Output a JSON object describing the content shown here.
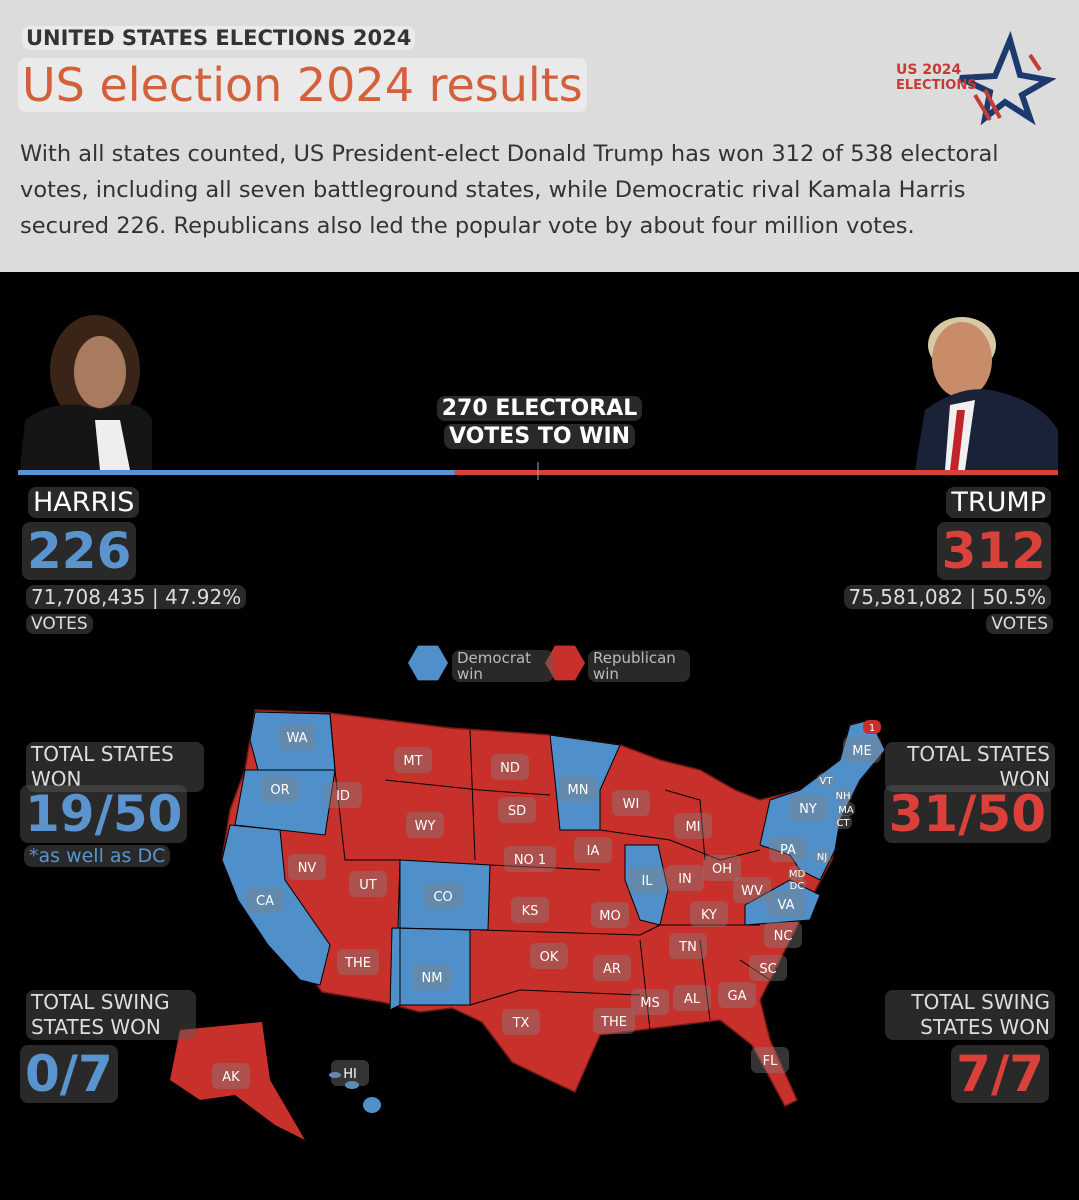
{
  "header": {
    "kicker": "UNITED STATES ELECTIONS 2024",
    "title": "US election 2024 results",
    "description": "With all states counted, US President-elect Donald Trump has won 312 of 538 electoral votes, including all seven battleground states, while Democratic rival Kamala Harris secured 226. Republicans also led the popular vote by about four million votes.",
    "logo": [
      "US 2024",
      "ELECTIONS"
    ]
  },
  "goal": [
    "270 ELECTORAL",
    "VOTES TO WIN"
  ],
  "harris": {
    "name": "HARRIS",
    "electoral_votes": 226,
    "color": "#5a94cf",
    "popular": "71,708,435 | 47.92%",
    "votes_label": "VOTES",
    "states_label": "TOTAL STATES WON",
    "states_won": "19/50",
    "states_note": "*as well as DC",
    "swing_label": "TOTAL SWING STATES WON",
    "swing_won": "0/7"
  },
  "trump": {
    "name": "TRUMP",
    "electoral_votes": 312,
    "color": "#d9413a",
    "popular": "75,581,082 | 50.5%",
    "votes_label": "VOTES",
    "states_label": "TOTAL STATES WON",
    "states_won": "31/50",
    "swing_label": "TOTAL SWING STATES WON",
    "swing_won": "7/7"
  },
  "legend": [
    {
      "label": "Democrat win",
      "color": "#4f8fca"
    },
    {
      "label": "Republican win",
      "color": "#c8312b"
    }
  ],
  "map": {
    "states": [
      {
        "label": "WA",
        "color": "#4f8fca"
      },
      {
        "label": "OR",
        "color": "#4f8fca"
      },
      {
        "label": "CA",
        "color": "#4f8fca"
      },
      {
        "label": "MT",
        "color": "#c8312b"
      },
      {
        "label": "ID",
        "color": "#c8312b"
      },
      {
        "label": "NV",
        "color": "#c8312b"
      },
      {
        "label": "UT",
        "color": "#c8312b"
      },
      {
        "label": "WY",
        "color": "#c8312b"
      },
      {
        "label": "CO",
        "color": "#4f8fca"
      },
      {
        "label": "ND",
        "color": "#c8312b"
      },
      {
        "label": "SD",
        "color": "#c8312b"
      },
      {
        "label": "NO 1",
        "color": "#c8312b"
      },
      {
        "label": "THE",
        "color": "#c8312b"
      },
      {
        "label": "NM",
        "color": "#4f8fca"
      },
      {
        "label": "TX",
        "color": "#c8312b"
      },
      {
        "label": "OK",
        "color": "#c8312b"
      },
      {
        "label": "KS",
        "color": "#c8312b"
      },
      {
        "label": "MN",
        "color": "#4f8fca"
      },
      {
        "label": "IA",
        "color": "#c8312b"
      },
      {
        "label": "MO",
        "color": "#c8312b"
      },
      {
        "label": "AR",
        "color": "#c8312b"
      },
      {
        "label": "THE",
        "color": "#c8312b"
      },
      {
        "label": "MS",
        "color": "#c8312b"
      },
      {
        "label": "AL",
        "color": "#c8312b"
      },
      {
        "label": "GA",
        "color": "#c8312b"
      },
      {
        "label": "FL",
        "color": "#c8312b"
      },
      {
        "label": "SC",
        "color": "#c8312b"
      },
      {
        "label": "NC",
        "color": "#c8312b"
      },
      {
        "label": "TN",
        "color": "#c8312b"
      },
      {
        "label": "KY",
        "color": "#c8312b"
      },
      {
        "label": "IL",
        "color": "#4f8fca"
      },
      {
        "label": "IN",
        "color": "#c8312b"
      },
      {
        "label": "OH",
        "color": "#c8312b"
      },
      {
        "label": "MI",
        "color": "#c8312b"
      },
      {
        "label": "WI",
        "color": "#c8312b"
      },
      {
        "label": "WV",
        "color": "#c8312b"
      },
      {
        "label": "VA",
        "color": "#4f8fca"
      },
      {
        "label": "PA",
        "color": "#c8312b"
      },
      {
        "label": "NY",
        "color": "#4f8fca"
      },
      {
        "label": "VT",
        "color": "#4f8fca"
      },
      {
        "label": "NH",
        "color": "#4f8fca"
      },
      {
        "label": "MA",
        "color": "#4f8fca"
      },
      {
        "label": "CT",
        "color": "#4f8fca"
      },
      {
        "label": "NJ",
        "color": "#4f8fca"
      },
      {
        "label": "MD",
        "color": "#4f8fca"
      },
      {
        "label": "DC",
        "color": "#4f8fca"
      },
      {
        "label": "ME",
        "color": "#4f8fca"
      },
      {
        "label": "1",
        "color": "#c8312b"
      },
      {
        "label": "AK",
        "color": "#c8312b"
      },
      {
        "label": "HI",
        "color": "#4f8fca"
      }
    ]
  }
}
